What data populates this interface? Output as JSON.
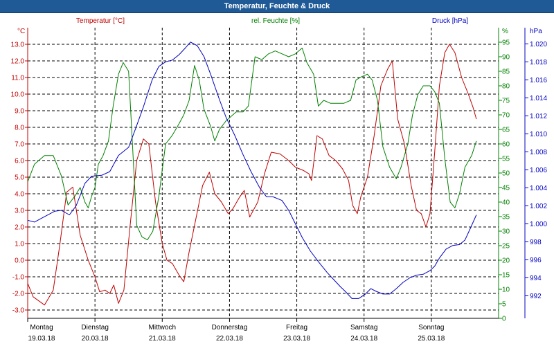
{
  "window": {
    "title": "Temperatur, Feuchte & Druck"
  },
  "colors": {
    "temperature": "#c00000",
    "humidity": "#008000",
    "pressure": "#0000c0",
    "grid": "#000000",
    "title_bg": "#1f5a96"
  },
  "chart_data": {
    "type": "line",
    "title": "Temperatur, Feuchte & Druck",
    "axes": {
      "temperature": {
        "label": "Temperatur [°C]",
        "unit": "°C",
        "ylim": [
          -3.5,
          14.0
        ],
        "ticks": [
          "-3.0",
          "-2.0",
          "-1.0",
          "0.0",
          "1.0",
          "2.0",
          "3.0",
          "4.0",
          "5.0",
          "6.0",
          "7.0",
          "8.0",
          "9.0",
          "10.0",
          "11.0",
          "12.0",
          "13.0"
        ]
      },
      "humidity": {
        "label": "rel. Feuchte [%]",
        "unit": "%",
        "ylim": [
          0,
          100
        ],
        "ticks": [
          "0",
          "5",
          "10",
          "15",
          "20",
          "25",
          "30",
          "35",
          "40",
          "45",
          "50",
          "55",
          "60",
          "65",
          "70",
          "75",
          "80",
          "85",
          "90",
          "95"
        ]
      },
      "pressure": {
        "label": "Druck [hPa]",
        "unit": "hPa",
        "ylim": [
          0.9895,
          1.0218
        ],
        "ticks": [
          "992",
          "994",
          "996",
          "998",
          "1.000",
          "1.002",
          "1.004",
          "1.006",
          "1.008",
          "1.010",
          "1.012",
          "1.014",
          "1.016",
          "1.018",
          "1.020"
        ]
      }
    },
    "x_days": [
      {
        "day": "Montag",
        "date": "19.03.18"
      },
      {
        "day": "Dienstag",
        "date": "20.03.18"
      },
      {
        "day": "Mittwoch",
        "date": "21.03.18"
      },
      {
        "day": "Donnerstag",
        "date": "22.03.18"
      },
      {
        "day": "Freitag",
        "date": "23.03.18"
      },
      {
        "day": "Samstag",
        "date": "24.03.18"
      },
      {
        "day": "Sonntag",
        "date": "25.03.18"
      }
    ],
    "xlim": [
      0,
      7.0
    ],
    "series": [
      {
        "name": "Temperatur [°C]",
        "axis": "temperature",
        "color": "#c00000",
        "points": [
          [
            0,
            -1.4
          ],
          [
            0.08,
            -2.2
          ],
          [
            0.25,
            -2.7
          ],
          [
            0.38,
            -1.8
          ],
          [
            0.48,
            1.0
          ],
          [
            0.58,
            4.1
          ],
          [
            0.67,
            4.4
          ],
          [
            0.78,
            1.5
          ],
          [
            0.9,
            0.0
          ],
          [
            1.0,
            -1.0
          ],
          [
            1.07,
            -1.9
          ],
          [
            1.15,
            -1.8
          ],
          [
            1.22,
            -2.0
          ],
          [
            1.28,
            -1.5
          ],
          [
            1.35,
            -2.6
          ],
          [
            1.43,
            -1.8
          ],
          [
            1.52,
            2.0
          ],
          [
            1.62,
            6.0
          ],
          [
            1.72,
            7.3
          ],
          [
            1.8,
            7.0
          ],
          [
            1.9,
            3.5
          ],
          [
            2.0,
            1.0
          ],
          [
            2.07,
            0.0
          ],
          [
            2.15,
            -0.2
          ],
          [
            2.25,
            -0.9
          ],
          [
            2.32,
            -1.3
          ],
          [
            2.4,
            0.5
          ],
          [
            2.5,
            2.5
          ],
          [
            2.6,
            4.5
          ],
          [
            2.7,
            5.3
          ],
          [
            2.78,
            4.0
          ],
          [
            2.88,
            3.5
          ],
          [
            2.98,
            2.8
          ],
          [
            3.05,
            3.1
          ],
          [
            3.15,
            3.8
          ],
          [
            3.22,
            4.2
          ],
          [
            3.3,
            2.6
          ],
          [
            3.42,
            3.5
          ],
          [
            3.52,
            5.2
          ],
          [
            3.62,
            6.5
          ],
          [
            3.75,
            6.4
          ],
          [
            3.88,
            6.0
          ],
          [
            3.98,
            5.6
          ],
          [
            4.1,
            5.4
          ],
          [
            4.18,
            5.2
          ],
          [
            4.22,
            4.8
          ],
          [
            4.3,
            7.5
          ],
          [
            4.38,
            7.3
          ],
          [
            4.48,
            6.3
          ],
          [
            4.58,
            6.0
          ],
          [
            4.68,
            5.5
          ],
          [
            4.77,
            4.8
          ],
          [
            4.83,
            3.3
          ],
          [
            4.9,
            2.8
          ],
          [
            4.95,
            3.8
          ],
          [
            5.05,
            5.0
          ],
          [
            5.15,
            7.5
          ],
          [
            5.25,
            10.5
          ],
          [
            5.35,
            11.5
          ],
          [
            5.42,
            12.0
          ],
          [
            5.5,
            8.5
          ],
          [
            5.6,
            7.0
          ],
          [
            5.7,
            4.5
          ],
          [
            5.78,
            3.0
          ],
          [
            5.85,
            2.8
          ],
          [
            5.92,
            2.0
          ],
          [
            5.98,
            2.8
          ],
          [
            6.05,
            6.5
          ],
          [
            6.12,
            10.5
          ],
          [
            6.2,
            12.5
          ],
          [
            6.27,
            13.0
          ],
          [
            6.35,
            12.5
          ],
          [
            6.45,
            11.0
          ],
          [
            6.55,
            10.0
          ],
          [
            6.62,
            9.2
          ],
          [
            6.67,
            8.5
          ]
        ]
      },
      {
        "name": "rel. Feuchte [%]",
        "axis": "humidity",
        "color": "#008000",
        "points": [
          [
            0,
            47
          ],
          [
            0.1,
            53
          ],
          [
            0.25,
            56
          ],
          [
            0.38,
            56
          ],
          [
            0.5,
            49
          ],
          [
            0.6,
            39
          ],
          [
            0.7,
            42
          ],
          [
            0.78,
            45
          ],
          [
            0.85,
            40
          ],
          [
            0.9,
            38
          ],
          [
            0.95,
            42
          ],
          [
            1.0,
            45
          ],
          [
            1.05,
            53
          ],
          [
            1.12,
            56
          ],
          [
            1.2,
            61
          ],
          [
            1.27,
            73
          ],
          [
            1.35,
            84
          ],
          [
            1.42,
            88
          ],
          [
            1.5,
            85
          ],
          [
            1.55,
            63
          ],
          [
            1.62,
            32
          ],
          [
            1.7,
            28
          ],
          [
            1.78,
            27
          ],
          [
            1.86,
            30
          ],
          [
            1.95,
            42
          ],
          [
            2.05,
            60
          ],
          [
            2.15,
            63
          ],
          [
            2.25,
            67
          ],
          [
            2.32,
            70
          ],
          [
            2.4,
            75
          ],
          [
            2.48,
            87
          ],
          [
            2.55,
            82
          ],
          [
            2.62,
            72
          ],
          [
            2.72,
            66
          ],
          [
            2.78,
            61
          ],
          [
            2.85,
            65
          ],
          [
            2.95,
            68
          ],
          [
            3.1,
            71
          ],
          [
            3.2,
            71
          ],
          [
            3.28,
            73
          ],
          [
            3.38,
            90
          ],
          [
            3.48,
            89
          ],
          [
            3.58,
            91
          ],
          [
            3.68,
            92
          ],
          [
            3.78,
            91
          ],
          [
            3.88,
            90
          ],
          [
            3.98,
            91
          ],
          [
            4.08,
            93
          ],
          [
            4.15,
            88
          ],
          [
            4.25,
            84
          ],
          [
            4.32,
            73
          ],
          [
            4.4,
            75
          ],
          [
            4.5,
            74
          ],
          [
            4.6,
            74
          ],
          [
            4.7,
            74
          ],
          [
            4.8,
            75
          ],
          [
            4.88,
            82
          ],
          [
            4.95,
            83
          ],
          [
            5.05,
            84
          ],
          [
            5.12,
            82
          ],
          [
            5.2,
            75
          ],
          [
            5.28,
            59
          ],
          [
            5.38,
            52
          ],
          [
            5.48,
            48
          ],
          [
            5.55,
            52
          ],
          [
            5.65,
            60
          ],
          [
            5.72,
            70
          ],
          [
            5.8,
            77
          ],
          [
            5.88,
            80
          ],
          [
            5.98,
            80
          ],
          [
            6.05,
            78
          ],
          [
            6.12,
            74
          ],
          [
            6.2,
            55
          ],
          [
            6.28,
            40
          ],
          [
            6.35,
            38
          ],
          [
            6.42,
            43
          ],
          [
            6.5,
            52
          ],
          [
            6.6,
            56
          ],
          [
            6.67,
            61
          ]
        ]
      },
      {
        "name": "Druck [hPa]",
        "axis": "pressure",
        "color": "#0000c0",
        "points": [
          [
            0,
            1.0004
          ],
          [
            0.1,
            1.0002
          ],
          [
            0.25,
            1.0008
          ],
          [
            0.4,
            1.0014
          ],
          [
            0.5,
            1.0015
          ],
          [
            0.62,
            1.001
          ],
          [
            0.72,
            1.002
          ],
          [
            0.85,
            1.0045
          ],
          [
            0.95,
            1.0053
          ],
          [
            1.1,
            1.0054
          ],
          [
            1.22,
            1.0058
          ],
          [
            1.35,
            1.0076
          ],
          [
            1.5,
            1.0085
          ],
          [
            1.6,
            1.0105
          ],
          [
            1.72,
            1.013
          ],
          [
            1.85,
            1.016
          ],
          [
            1.95,
            1.0175
          ],
          [
            2.05,
            1.018
          ],
          [
            2.15,
            1.0182
          ],
          [
            2.25,
            1.0188
          ],
          [
            2.35,
            1.0196
          ],
          [
            2.42,
            1.0202
          ],
          [
            2.52,
            1.0198
          ],
          [
            2.62,
            1.0186
          ],
          [
            2.72,
            1.0166
          ],
          [
            2.85,
            1.0138
          ],
          [
            2.95,
            1.0118
          ],
          [
            3.08,
            1.0098
          ],
          [
            3.2,
            1.0077
          ],
          [
            3.32,
            1.0058
          ],
          [
            3.45,
            1.004
          ],
          [
            3.55,
            1.003
          ],
          [
            3.65,
            1.003
          ],
          [
            3.78,
            1.0026
          ],
          [
            3.88,
            1.0015
          ],
          [
            3.98,
            1.0
          ],
          [
            4.08,
            0.9985
          ],
          [
            4.2,
            0.997
          ],
          [
            4.32,
            0.9958
          ],
          [
            4.45,
            0.9946
          ],
          [
            4.55,
            0.9938
          ],
          [
            4.65,
            0.993
          ],
          [
            4.72,
            0.9925
          ],
          [
            4.82,
            0.9917
          ],
          [
            4.92,
            0.9917
          ],
          [
            5.02,
            0.9922
          ],
          [
            5.1,
            0.9928
          ],
          [
            5.18,
            0.9925
          ],
          [
            5.28,
            0.9922
          ],
          [
            5.38,
            0.9922
          ],
          [
            5.48,
            0.9928
          ],
          [
            5.58,
            0.9935
          ],
          [
            5.68,
            0.994
          ],
          [
            5.78,
            0.9943
          ],
          [
            5.88,
            0.9944
          ],
          [
            5.98,
            0.9948
          ],
          [
            6.05,
            0.9953
          ],
          [
            6.12,
            0.9962
          ],
          [
            6.22,
            0.9972
          ],
          [
            6.32,
            0.9976
          ],
          [
            6.42,
            0.9977
          ],
          [
            6.5,
            0.9982
          ],
          [
            6.58,
            0.9995
          ],
          [
            6.67,
            1.001
          ]
        ]
      }
    ]
  }
}
